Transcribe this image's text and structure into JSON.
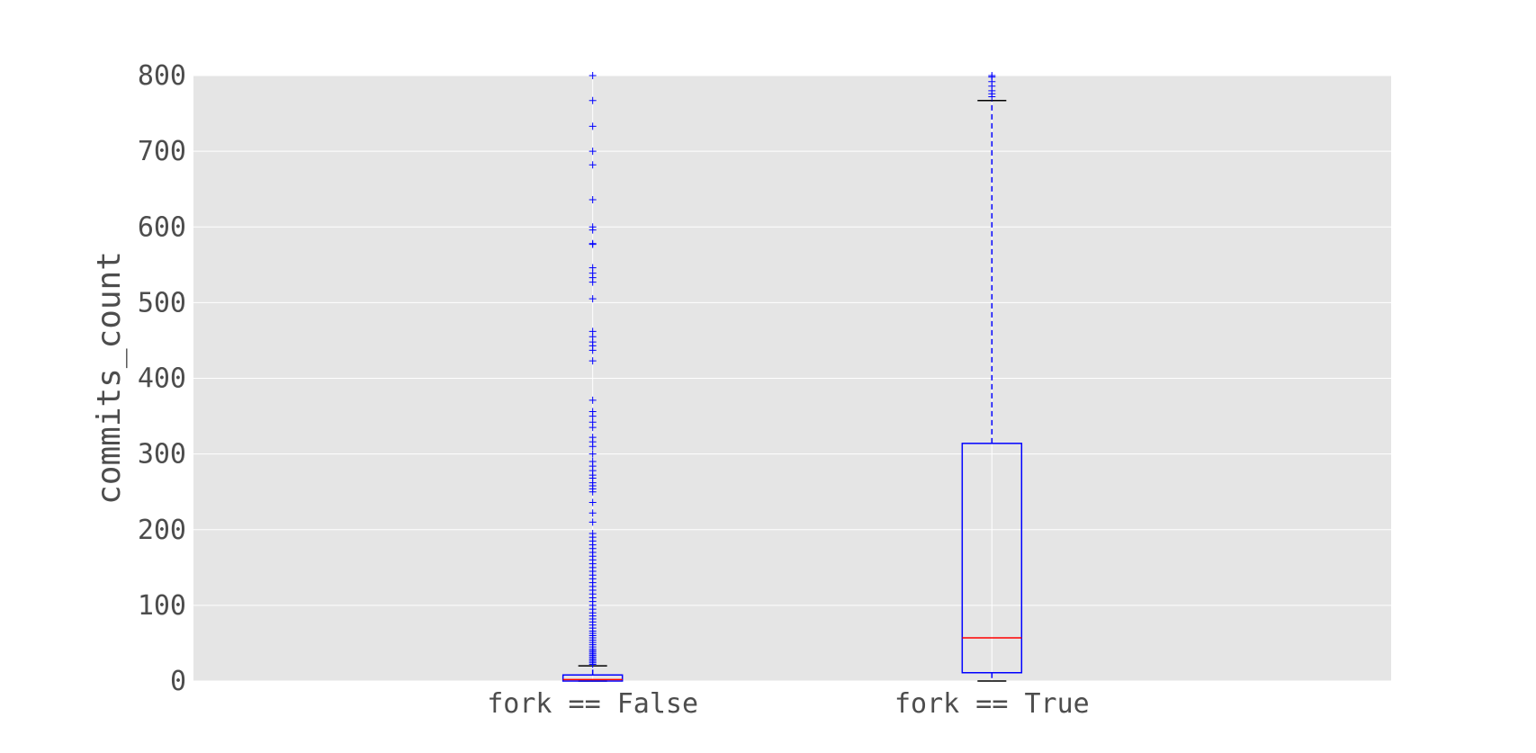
{
  "chart_data": {
    "type": "box",
    "ylabel": "commits_count",
    "ylim": [
      0,
      800
    ],
    "yticks": [
      0,
      100,
      200,
      300,
      400,
      500,
      600,
      700,
      800
    ],
    "grid": true,
    "colors": {
      "background": "#e5e5e5",
      "grid": "#ffffff",
      "box": "#0000ff",
      "median": "#ff0000",
      "whisker_cap": "#000000"
    },
    "categories": [
      "fork == False",
      "fork == True"
    ],
    "boxes": [
      {
        "label": "fork == False",
        "whisker_low": 0,
        "q1": 0,
        "median": 2,
        "q3": 8,
        "whisker_high": 20,
        "fliers": [
          22,
          24,
          26,
          28,
          30,
          32,
          34,
          36,
          38,
          40,
          42,
          45,
          48,
          51,
          54,
          57,
          60,
          63,
          66,
          70,
          74,
          78,
          82,
          86,
          90,
          95,
          100,
          105,
          110,
          115,
          120,
          125,
          130,
          135,
          140,
          145,
          150,
          155,
          160,
          165,
          170,
          175,
          180,
          185,
          190,
          195,
          210,
          222,
          236,
          250,
          254,
          258,
          262,
          268,
          272,
          278,
          284,
          290,
          300,
          310,
          316,
          322,
          335,
          342,
          350,
          356,
          371,
          423,
          437,
          443,
          448,
          455,
          462,
          505,
          527,
          533,
          539,
          546,
          577,
          578,
          596,
          600,
          636,
          682,
          700,
          733,
          767,
          800
        ]
      },
      {
        "label": "fork == True",
        "whisker_low": 0,
        "q1": 11,
        "median": 57,
        "q3": 314,
        "whisker_high": 767,
        "fliers": [
          772,
          776,
          780,
          786,
          792,
          798,
          800
        ]
      }
    ]
  }
}
